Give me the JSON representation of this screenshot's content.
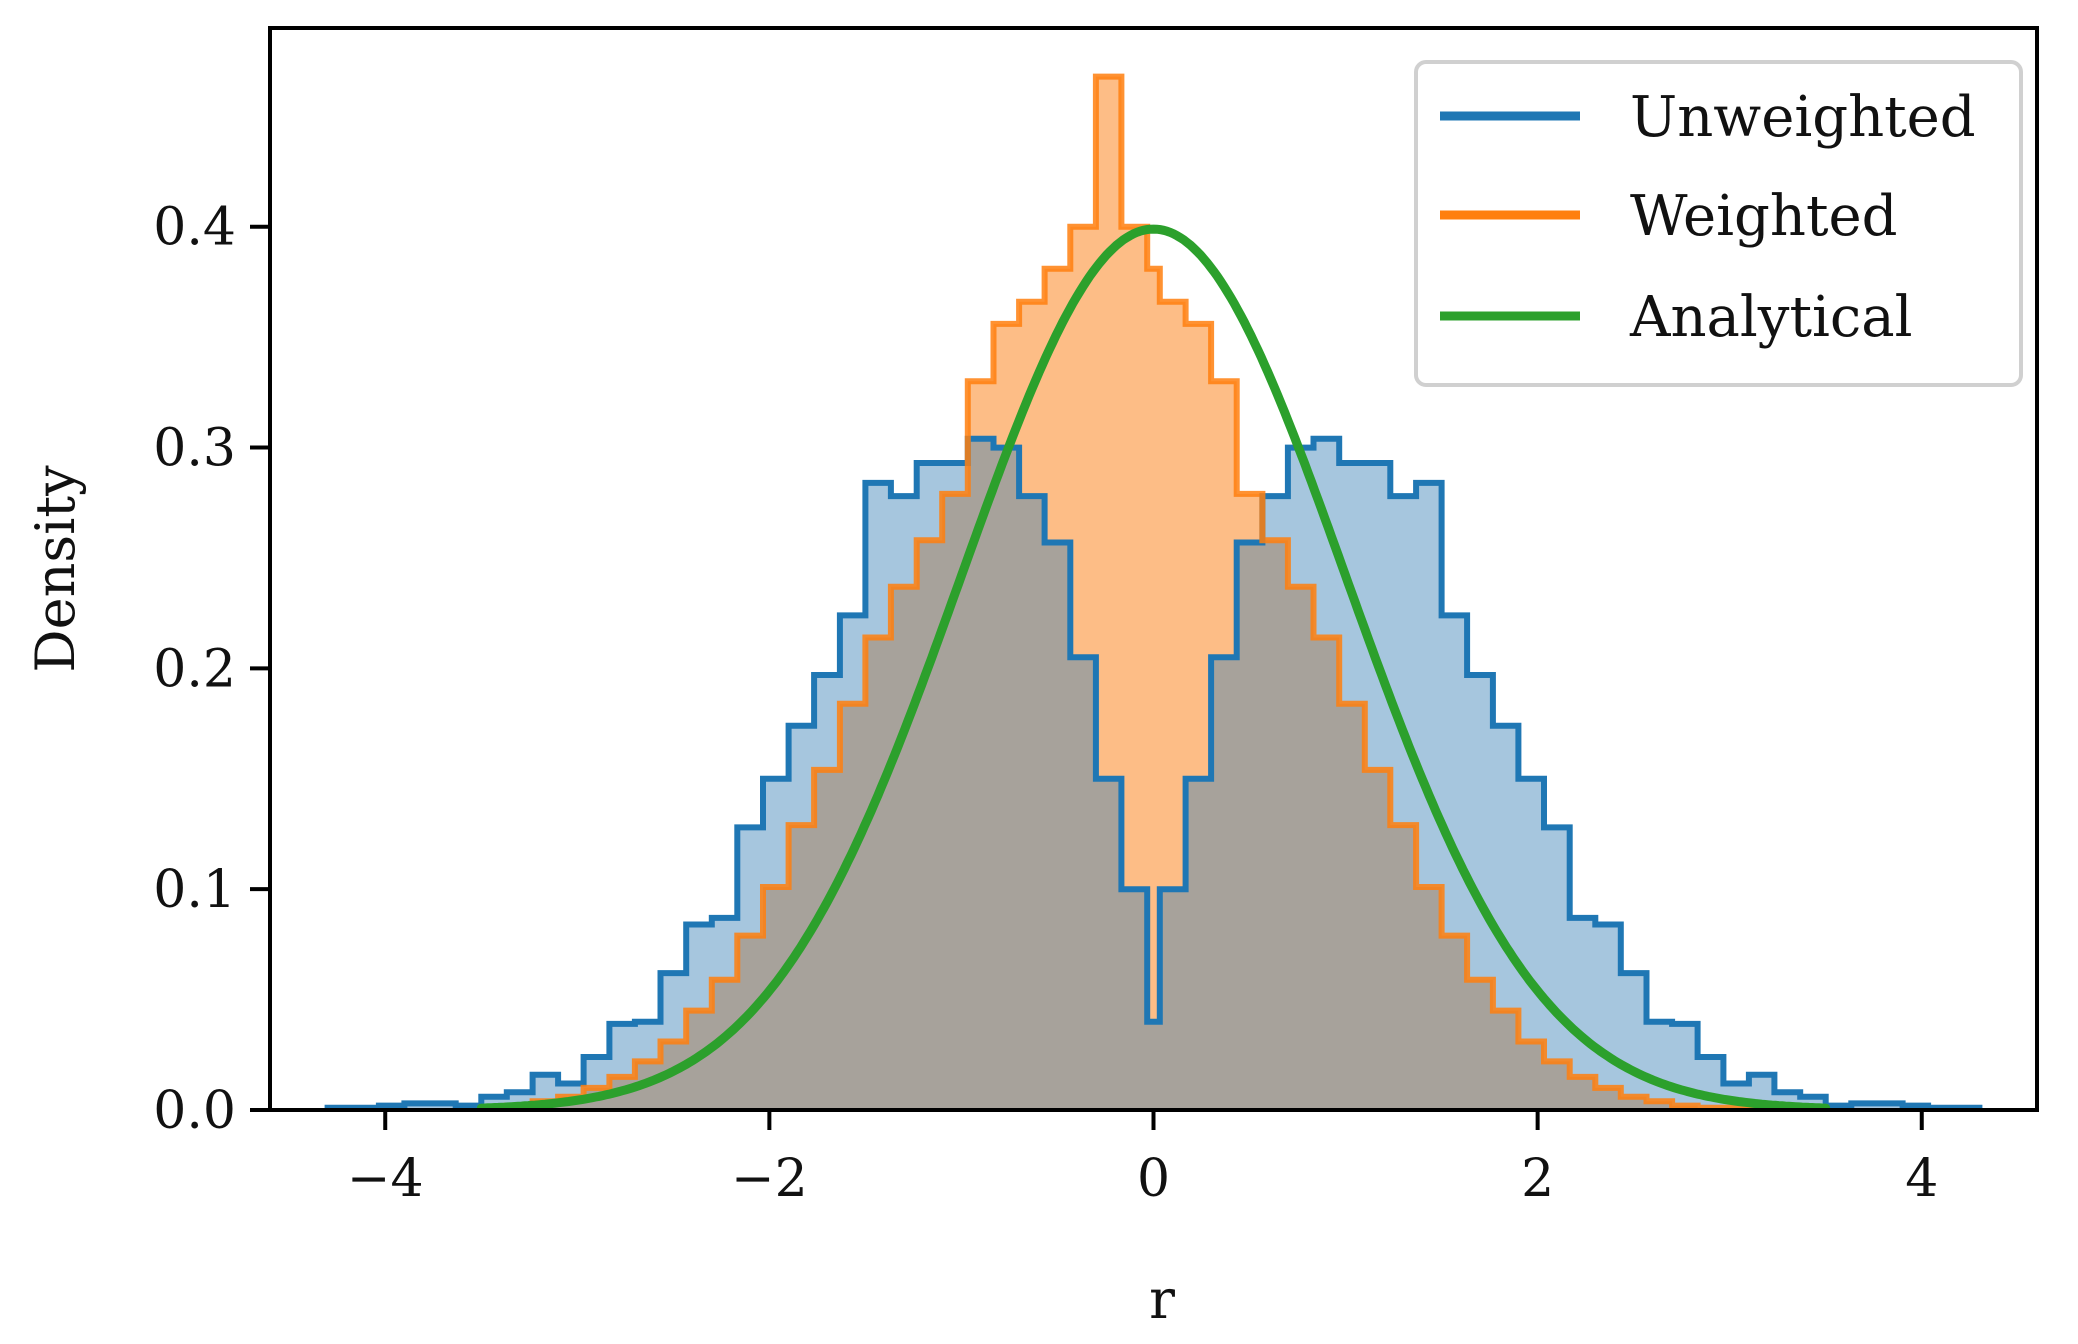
{
  "chart_data": {
    "type": "histogram",
    "xlabel": "r",
    "ylabel": "Density",
    "xlim": [
      -4.6,
      4.6
    ],
    "ylim": [
      0,
      0.49
    ],
    "xticks": [
      -4,
      -2,
      0,
      2,
      4
    ],
    "xtick_labels": [
      "−4",
      "−2",
      "0",
      "2",
      "4"
    ],
    "yticks": [
      0.0,
      0.1,
      0.2,
      0.3,
      0.4
    ],
    "ytick_labels": [
      "0.0",
      "0.1",
      "0.2",
      "0.3",
      "0.4"
    ],
    "grid": false,
    "legend_position": "top-right",
    "series": [
      {
        "name": "Unweighted",
        "kind": "step-filled",
        "color": "#1f77b4",
        "fill_color": "#a6c6de",
        "bin_edges": [
          -4.3,
          -4.167,
          -4.033,
          -3.9,
          -3.767,
          -3.633,
          -3.5,
          -3.367,
          -3.233,
          -3.1,
          -2.967,
          -2.833,
          -2.7,
          -2.567,
          -2.433,
          -2.3,
          -2.167,
          -2.033,
          -1.9,
          -1.767,
          -1.633,
          -1.5,
          -1.367,
          -1.233,
          -1.1,
          -0.967,
          -0.833,
          -0.7,
          -0.567,
          -0.433,
          -0.3,
          -0.167,
          -0.033,
          0.033,
          0.167,
          0.3,
          0.433,
          0.567,
          0.7,
          0.833,
          0.967,
          1.1,
          1.233,
          1.367,
          1.5,
          1.633,
          1.767,
          1.9,
          2.033,
          2.167,
          2.3,
          2.433,
          2.567,
          2.7,
          2.833,
          2.967,
          3.1,
          3.233,
          3.367,
          3.5,
          3.633,
          3.767,
          3.9,
          4.033,
          4.167,
          4.3
        ],
        "values": [
          0.001,
          0.001,
          0.002,
          0.003,
          0.003,
          0.002,
          0.006,
          0.008,
          0.016,
          0.012,
          0.024,
          0.039,
          0.04,
          0.062,
          0.084,
          0.087,
          0.128,
          0.15,
          0.174,
          0.197,
          0.224,
          0.284,
          0.278,
          0.293,
          0.293,
          0.304,
          0.3,
          0.278,
          0.257,
          0.205,
          0.15,
          0.1,
          0.04,
          0.1,
          0.15,
          0.205,
          0.257,
          0.278,
          0.3,
          0.304,
          0.293,
          0.293,
          0.278,
          0.284,
          0.224,
          0.197,
          0.174,
          0.15,
          0.128,
          0.087,
          0.084,
          0.062,
          0.04,
          0.039,
          0.024,
          0.012,
          0.016,
          0.008,
          0.006,
          0.002,
          0.003,
          0.003,
          0.002,
          0.001,
          0.001
        ]
      },
      {
        "name": "Weighted",
        "kind": "step-filled",
        "color": "#ff7f0e",
        "fill_color": "#fdbd86",
        "bin_edges": [
          -3.5,
          -3.367,
          -3.233,
          -3.1,
          -2.967,
          -2.833,
          -2.7,
          -2.567,
          -2.433,
          -2.3,
          -2.167,
          -2.033,
          -1.9,
          -1.767,
          -1.633,
          -1.5,
          -1.367,
          -1.233,
          -1.1,
          -0.967,
          -0.833,
          -0.7,
          -0.567,
          -0.433,
          -0.3,
          -0.167,
          -0.033,
          0.033,
          0.167,
          0.3,
          0.433,
          0.567,
          0.7,
          0.833,
          0.967,
          1.1,
          1.233,
          1.367,
          1.5,
          1.633,
          1.767,
          1.9,
          2.033,
          2.167,
          2.3,
          2.433,
          2.567,
          2.7,
          2.833,
          2.967,
          3.1,
          3.233,
          3.367,
          3.5
        ],
        "values": [
          0.001,
          0.002,
          0.004,
          0.006,
          0.01,
          0.015,
          0.022,
          0.031,
          0.045,
          0.059,
          0.079,
          0.101,
          0.129,
          0.154,
          0.184,
          0.214,
          0.237,
          0.258,
          0.279,
          0.33,
          0.356,
          0.366,
          0.381,
          0.4,
          0.468,
          0.4,
          0.381,
          0.366,
          0.356,
          0.33,
          0.279,
          0.258,
          0.237,
          0.214,
          0.184,
          0.154,
          0.129,
          0.101,
          0.079,
          0.059,
          0.045,
          0.031,
          0.022,
          0.015,
          0.01,
          0.006,
          0.004,
          0.002,
          0.001,
          0.001,
          0.001,
          0.001,
          0.001
        ]
      },
      {
        "name": "Analytical",
        "kind": "line",
        "color": "#2ca02c",
        "function": "standard_normal_pdf",
        "x_range": [
          -3.5,
          3.5
        ]
      }
    ],
    "overlap_fill_color": "#a7a29b"
  }
}
